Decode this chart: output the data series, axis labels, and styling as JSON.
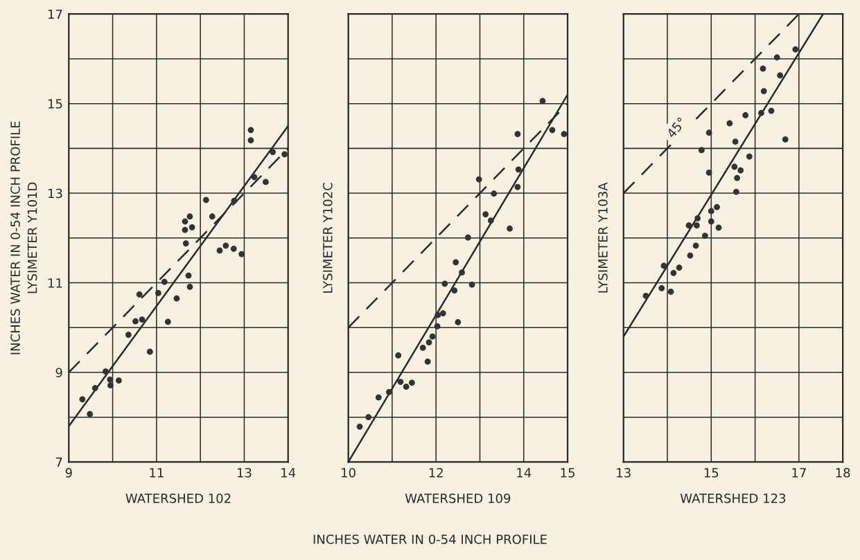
{
  "chart_data": [
    {
      "type": "scatter",
      "xlabel": "WATERSHED 102",
      "ylabel": "LYSIMETER Y101D",
      "annotations": [
        "INCHES WATER IN 0-54 INCH PROFILE"
      ],
      "xlim": [
        9,
        14
      ],
      "ylim": [
        7,
        17
      ],
      "xticks": [
        9,
        {
          "value": 10,
          "label": null
        },
        11,
        {
          "value": 12,
          "label": null
        },
        13,
        14
      ],
      "yticks": [
        7,
        {
          "value": 8,
          "label": null
        },
        9,
        {
          "value": 10,
          "label": null
        },
        11,
        {
          "value": 12,
          "label": null
        },
        13,
        {
          "value": 14,
          "label": null
        },
        15,
        {
          "value": 16,
          "label": null
        },
        17
      ],
      "grid": true,
      "legend": false,
      "series": [
        {
          "marker": "circle",
          "color": "#333333",
          "x": [
            13.15,
            13.15,
            13.65,
            13.92,
            13.23,
            13.49,
            12.77,
            12.13,
            12.27,
            11.76,
            11.65,
            11.81,
            11.65,
            11.67,
            12.44,
            12.58,
            12.76,
            12.94,
            11.73,
            11.76,
            11.18,
            11.04,
            11.46,
            10.61,
            10.67,
            10.52,
            11.26,
            10.36,
            10.85,
            9.84,
            9.94,
            10.14,
            9.95,
            9.6,
            9.31,
            9.48
          ],
          "values": [
            14.41,
            14.18,
            13.92,
            13.87,
            13.36,
            13.25,
            12.83,
            12.85,
            12.48,
            12.48,
            12.37,
            12.24,
            12.18,
            11.88,
            11.72,
            11.83,
            11.76,
            11.64,
            11.16,
            10.91,
            11.02,
            10.77,
            10.65,
            10.74,
            10.18,
            10.14,
            10.13,
            9.84,
            9.46,
            9.02,
            8.84,
            8.82,
            8.71,
            8.65,
            8.4,
            8.07
          ]
        },
        {
          "type": "line",
          "line_style": "solid",
          "color": "#2a2a2a",
          "x": [
            9,
            14
          ],
          "values": [
            7.8,
            14.5
          ]
        },
        {
          "type": "line",
          "line_style": "dashed",
          "color": "#2a2a2a",
          "x": [
            9,
            14
          ],
          "values": [
            9,
            14
          ]
        }
      ]
    },
    {
      "type": "scatter",
      "xlabel": "WATERSHED 109",
      "ylabel": "LYSIMETER Y102C",
      "annotations": [
        "INCHES WATER IN 0-54 INCH PROFILE"
      ],
      "xlim": [
        10,
        15
      ],
      "ylim": [
        7,
        17
      ],
      "xticks": [
        10,
        {
          "value": 11,
          "label": null
        },
        12,
        {
          "value": 13,
          "label": null
        },
        14,
        15
      ],
      "yticks": [
        {
          "value": 7,
          "label": null
        },
        {
          "value": 8,
          "label": null
        },
        {
          "value": 9,
          "label": null
        },
        {
          "value": 10,
          "label": null
        },
        {
          "value": 11,
          "label": null
        },
        {
          "value": 12,
          "label": null
        },
        {
          "value": 13,
          "label": null
        },
        {
          "value": 14,
          "label": null
        },
        {
          "value": 15,
          "label": null
        },
        {
          "value": 16,
          "label": null
        },
        {
          "value": 17,
          "label": null
        }
      ],
      "tick_labels": "x",
      "grid": true,
      "legend": false,
      "series": [
        {
          "marker": "circle",
          "color": "#333333",
          "x": [
            14.43,
            13.86,
            14.65,
            14.92,
            13.88,
            13.86,
            12.98,
            13.32,
            13.13,
            13.25,
            13.68,
            12.73,
            12.45,
            12.59,
            12.2,
            12.82,
            12.42,
            12.04,
            12.16,
            12.5,
            12.03,
            11.92,
            11.84,
            11.7,
            11.81,
            11.14,
            11.19,
            11.45,
            11.32,
            10.93,
            10.69,
            10.46,
            10.26
          ],
          "values": [
            15.06,
            14.32,
            14.41,
            14.32,
            13.53,
            13.14,
            13.31,
            12.99,
            12.53,
            12.39,
            12.21,
            12.01,
            11.46,
            11.23,
            10.98,
            10.96,
            10.83,
            10.28,
            10.32,
            10.12,
            10.03,
            9.8,
            9.67,
            9.55,
            9.24,
            9.38,
            8.79,
            8.77,
            8.68,
            8.56,
            8.44,
            8.0,
            7.79
          ]
        },
        {
          "type": "line",
          "line_style": "solid",
          "color": "#2a2a2a",
          "x": [
            10,
            15
          ],
          "values": [
            7.0,
            15.2
          ]
        },
        {
          "type": "line",
          "line_style": "dashed",
          "color": "#2a2a2a",
          "x": [
            10,
            15
          ],
          "values": [
            10,
            15
          ]
        }
      ]
    },
    {
      "type": "scatter",
      "xlabel": "WATERSHED 123",
      "ylabel": "LYSIMETER Y103A",
      "annotations": [
        "45°"
      ],
      "xlim": [
        13,
        18
      ],
      "ylim": [
        7,
        17
      ],
      "xticks": [
        13,
        {
          "value": 14,
          "label": null
        },
        15,
        {
          "value": 16,
          "label": null
        },
        17,
        18
      ],
      "yticks": [
        {
          "value": 7,
          "label": null
        },
        {
          "value": 8,
          "label": null
        },
        {
          "value": 9,
          "label": null
        },
        {
          "value": 10,
          "label": null
        },
        {
          "value": 11,
          "label": null
        },
        {
          "value": 12,
          "label": null
        },
        {
          "value": 13,
          "label": null
        },
        {
          "value": 14,
          "label": null
        },
        {
          "value": 15,
          "label": null
        },
        {
          "value": 16,
          "label": null
        },
        {
          "value": 17,
          "label": null
        }
      ],
      "tick_labels": "x",
      "grid": true,
      "legend": false,
      "series": [
        {
          "marker": "circle",
          "color": "#333333",
          "x": [
            16.92,
            16.5,
            16.18,
            16.57,
            16.2,
            16.14,
            16.37,
            15.78,
            15.42,
            14.95,
            15.55,
            16.69,
            14.78,
            15.87,
            15.53,
            15.67,
            14.95,
            15.59,
            15.57,
            15.13,
            15.0,
            14.69,
            15.0,
            14.49,
            14.67,
            15.17,
            14.86,
            14.65,
            14.52,
            13.92,
            14.27,
            14.14,
            13.87,
            14.08,
            13.51
          ],
          "values": [
            16.21,
            16.03,
            15.78,
            15.63,
            15.28,
            14.79,
            14.84,
            14.74,
            14.56,
            14.35,
            14.15,
            14.2,
            13.96,
            13.82,
            13.59,
            13.51,
            13.46,
            13.34,
            13.03,
            12.69,
            12.6,
            12.44,
            12.37,
            12.28,
            12.28,
            12.23,
            12.05,
            11.83,
            11.61,
            11.38,
            11.34,
            11.22,
            10.88,
            10.8,
            10.71
          ]
        },
        {
          "type": "line",
          "line_style": "solid",
          "color": "#2a2a2a",
          "x": [
            13,
            17.55
          ],
          "values": [
            9.8,
            17.0
          ]
        },
        {
          "type": "line",
          "line_style": "dashed",
          "color": "#2a2a2a",
          "x": [
            13,
            17
          ],
          "values": [
            13,
            17
          ]
        }
      ]
    }
  ]
}
